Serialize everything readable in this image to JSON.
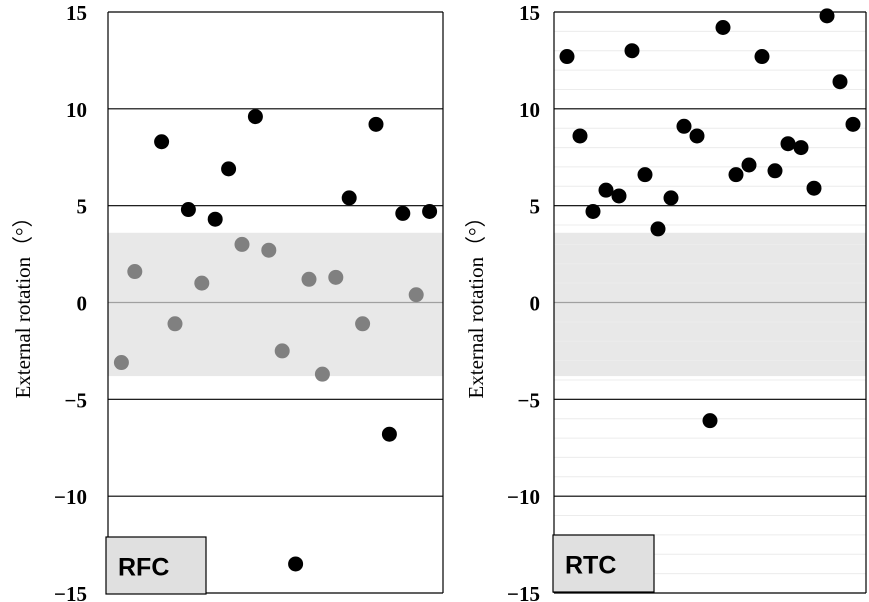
{
  "chart_data": [
    {
      "type": "scatter",
      "panel_label": "RFC",
      "ylabel": "External rotation（°）",
      "ylim": [
        -15,
        15
      ],
      "yticks": [
        15,
        10,
        5,
        0,
        -5,
        -10,
        -15
      ],
      "shaded_band": [
        -3.8,
        3.6
      ],
      "series": [
        {
          "color": "#000000",
          "points": [
            {
              "x": 4,
              "y": 8.3
            },
            {
              "x": 6,
              "y": 4.8
            },
            {
              "x": 8,
              "y": 4.3
            },
            {
              "x": 9,
              "y": 6.9
            },
            {
              "x": 11,
              "y": 9.6
            },
            {
              "x": 14,
              "y": -13.5
            },
            {
              "x": 18,
              "y": 5.4
            },
            {
              "x": 20,
              "y": 9.2
            },
            {
              "x": 21,
              "y": -6.8
            },
            {
              "x": 22,
              "y": 4.6
            },
            {
              "x": 24,
              "y": 4.7
            }
          ]
        },
        {
          "color": "#808080",
          "points": [
            {
              "x": 1,
              "y": -3.1
            },
            {
              "x": 2,
              "y": 1.6
            },
            {
              "x": 5,
              "y": -1.1
            },
            {
              "x": 7,
              "y": 1.0
            },
            {
              "x": 10,
              "y": 3.0
            },
            {
              "x": 12,
              "y": 2.7
            },
            {
              "x": 13,
              "y": -2.5
            },
            {
              "x": 15,
              "y": 1.2
            },
            {
              "x": 16,
              "y": -3.7
            },
            {
              "x": 17,
              "y": 1.3
            },
            {
              "x": 19,
              "y": -1.1
            },
            {
              "x": 23,
              "y": 0.4
            }
          ]
        }
      ]
    },
    {
      "type": "scatter",
      "panel_label": "RTC",
      "ylabel": "External rotation（°）",
      "ylim": [
        -15,
        15
      ],
      "yticks": [
        15,
        10,
        5,
        0,
        -5,
        -10,
        -15
      ],
      "shaded_band": [
        -3.8,
        3.6
      ],
      "series": [
        {
          "color": "#000000",
          "points": [
            {
              "x": 1,
              "y": 12.7
            },
            {
              "x": 2,
              "y": 8.6
            },
            {
              "x": 3,
              "y": 4.7
            },
            {
              "x": 4,
              "y": 5.8
            },
            {
              "x": 5,
              "y": 5.5
            },
            {
              "x": 6,
              "y": 13.0
            },
            {
              "x": 7,
              "y": 6.6
            },
            {
              "x": 8,
              "y": 3.8
            },
            {
              "x": 9,
              "y": 5.4
            },
            {
              "x": 10,
              "y": 9.1
            },
            {
              "x": 11,
              "y": 8.6
            },
            {
              "x": 12,
              "y": -6.1
            },
            {
              "x": 13,
              "y": 14.2
            },
            {
              "x": 14,
              "y": 6.6
            },
            {
              "x": 15,
              "y": 7.1
            },
            {
              "x": 16,
              "y": 12.7
            },
            {
              "x": 17,
              "y": 6.8
            },
            {
              "x": 18,
              "y": 8.2
            },
            {
              "x": 19,
              "y": 8.0
            },
            {
              "x": 20,
              "y": 5.9
            },
            {
              "x": 21,
              "y": 14.8
            },
            {
              "x": 22,
              "y": 11.4
            },
            {
              "x": 23,
              "y": 9.2
            }
          ]
        }
      ]
    }
  ]
}
